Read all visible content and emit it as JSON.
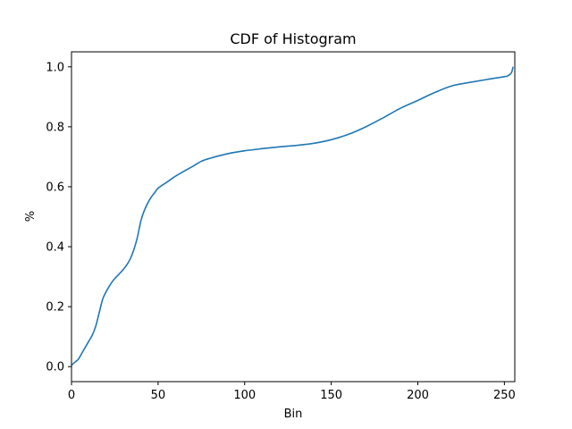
{
  "chart_data": {
    "type": "line",
    "title": "CDF of Histogram",
    "xlabel": "Bin",
    "ylabel": "%",
    "xlim": [
      0,
      256
    ],
    "ylim": [
      -0.05,
      1.05
    ],
    "x_ticks": [
      0,
      50,
      100,
      150,
      200,
      250
    ],
    "y_ticks": [
      0.0,
      0.2,
      0.4,
      0.6,
      0.8,
      1.0
    ],
    "x_tick_labels": [
      "0",
      "50",
      "100",
      "150",
      "200",
      "250"
    ],
    "y_tick_labels": [
      "0.0",
      "0.2",
      "0.4",
      "0.6",
      "0.8",
      "1.0"
    ],
    "grid": false,
    "line_color": "#1f77b4",
    "series": [
      {
        "x": [
          0,
          2,
          4,
          6,
          8,
          10,
          12,
          14,
          16,
          18,
          20,
          22,
          24,
          26,
          28,
          30,
          32,
          34,
          36,
          38,
          40,
          42,
          44,
          46,
          48,
          50,
          55,
          60,
          65,
          70,
          75,
          80,
          90,
          100,
          110,
          120,
          130,
          140,
          150,
          160,
          170,
          180,
          190,
          200,
          210,
          220,
          230,
          240,
          250,
          252,
          254,
          255
        ],
        "y": [
          0.005,
          0.015,
          0.025,
          0.045,
          0.065,
          0.085,
          0.105,
          0.135,
          0.18,
          0.225,
          0.25,
          0.27,
          0.287,
          0.3,
          0.312,
          0.325,
          0.34,
          0.36,
          0.39,
          0.43,
          0.485,
          0.52,
          0.545,
          0.565,
          0.58,
          0.595,
          0.615,
          0.635,
          0.652,
          0.668,
          0.685,
          0.695,
          0.71,
          0.72,
          0.727,
          0.733,
          0.738,
          0.745,
          0.757,
          0.775,
          0.8,
          0.83,
          0.862,
          0.888,
          0.915,
          0.937,
          0.948,
          0.958,
          0.967,
          0.97,
          0.98,
          1.0
        ]
      }
    ]
  }
}
